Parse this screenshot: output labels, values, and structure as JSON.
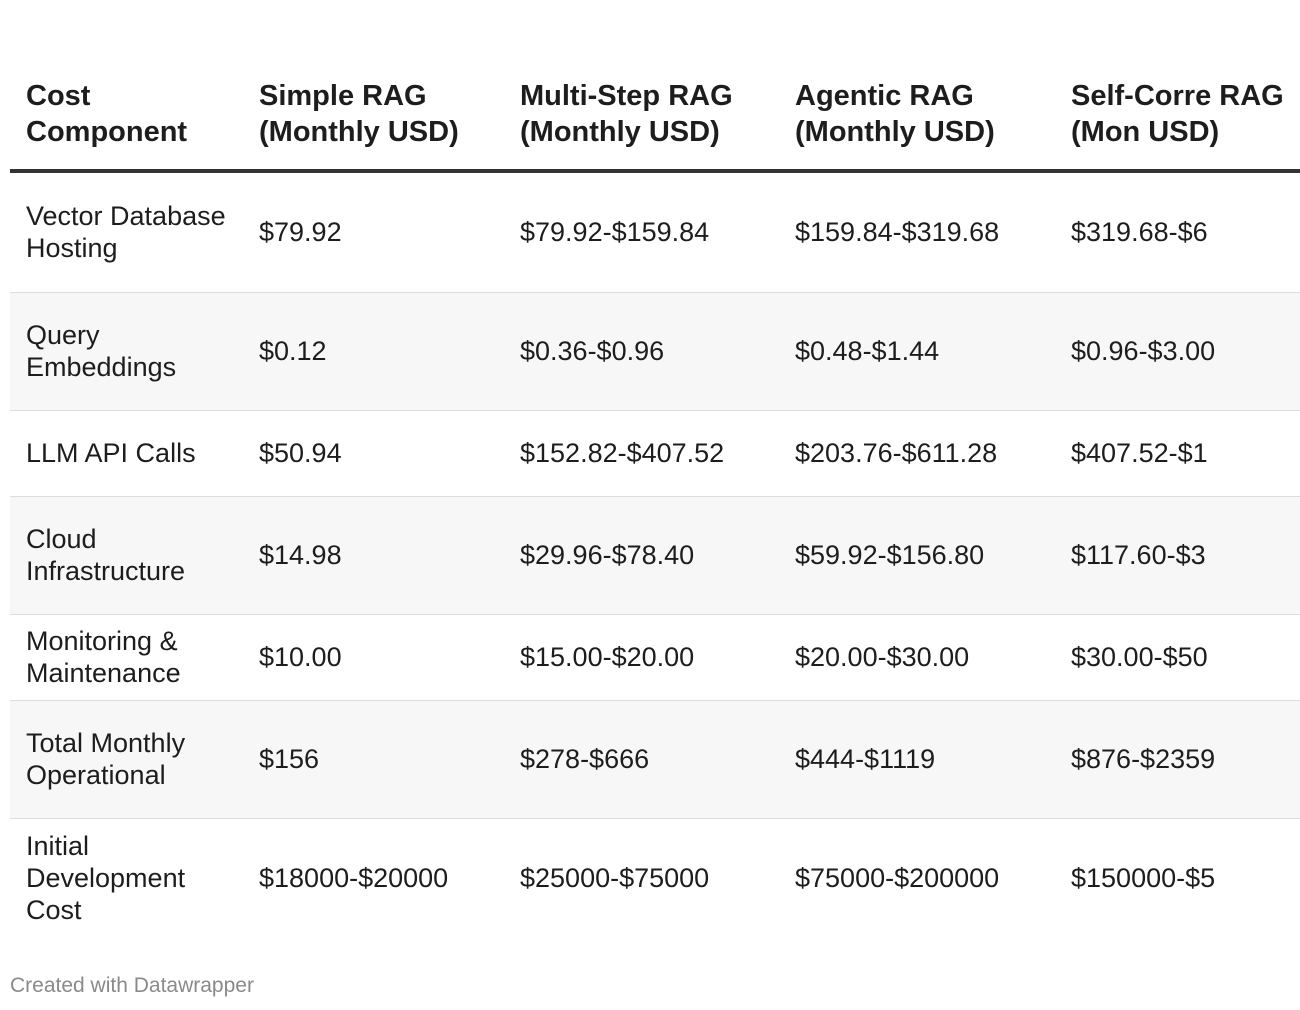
{
  "chart_data": {
    "type": "table",
    "columns": [
      "Cost Component",
      "Simple RAG (Monthly USD)",
      "Multi-Step RAG (Monthly USD)",
      "Agentic RAG (Monthly USD)",
      "Self-Corre RAG (Mon USD)"
    ],
    "rows": [
      [
        "Vector Database Hosting",
        "$79.92",
        "$79.92-$159.84",
        "$159.84-$319.68",
        "$319.68-$6"
      ],
      [
        "Query Embeddings",
        "$0.12",
        "$0.36-$0.96",
        "$0.48-$1.44",
        "$0.96-$3.00"
      ],
      [
        "LLM API Calls",
        "$50.94",
        "$152.82-$407.52",
        "$203.76-$611.28",
        "$407.52-$1"
      ],
      [
        "Cloud Infrastructure",
        "$14.98",
        "$29.96-$78.40",
        "$59.92-$156.80",
        "$117.60-$3"
      ],
      [
        "Monitoring & Maintenance",
        "$10.00",
        "$15.00-$20.00",
        "$20.00-$30.00",
        "$30.00-$50"
      ],
      [
        "Total Monthly Operational",
        "$156",
        "$278-$666",
        "$444-$1119",
        "$876-$2359"
      ],
      [
        "Initial Development Cost",
        "$18000-$20000",
        "$25000-$75000",
        "$75000-$200000",
        "$150000-$5"
      ]
    ]
  },
  "footer": {
    "credit": "Created with Datawrapper"
  }
}
